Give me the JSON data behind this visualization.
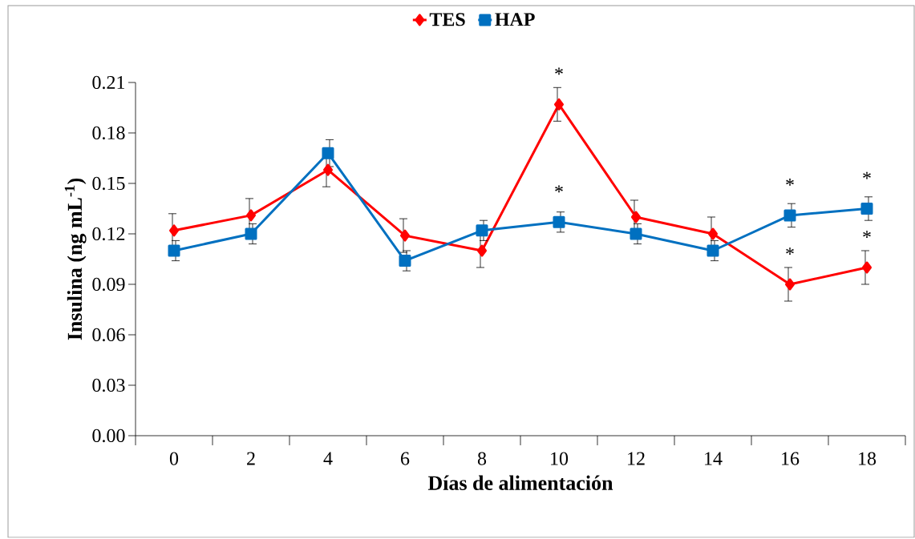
{
  "chart_data": {
    "type": "line",
    "xlabel": "Días de alimentación",
    "ylabel": "Insulina (ng mL$^{-1}$)",
    "categories": [
      "0",
      "2",
      "4",
      "6",
      "8",
      "10",
      "12",
      "14",
      "16",
      "18"
    ],
    "series": [
      {
        "name": "TES",
        "color": "#ff0000",
        "marker": "diamond",
        "values": [
          0.122,
          0.131,
          0.158,
          0.119,
          0.11,
          0.197,
          0.13,
          0.12,
          0.09,
          0.1
        ],
        "errors": [
          0.01,
          0.01,
          0.01,
          0.01,
          0.01,
          0.01,
          0.01,
          0.01,
          0.01,
          0.01
        ]
      },
      {
        "name": "HAP",
        "color": "#0070c0",
        "marker": "square",
        "values": [
          0.11,
          0.12,
          0.168,
          0.104,
          0.122,
          0.127,
          0.12,
          0.11,
          0.131,
          0.135
        ],
        "errors": [
          0.006,
          0.006,
          0.008,
          0.006,
          0.006,
          0.006,
          0.006,
          0.006,
          0.007,
          0.007
        ]
      }
    ],
    "ylim": [
      0,
      0.21
    ],
    "yticks": [
      {
        "value": 0,
        "label": "0.00"
      },
      {
        "value": 0.03,
        "label": "0.03"
      },
      {
        "value": 0.06,
        "label": "0.06"
      },
      {
        "value": 0.09,
        "label": "0.09"
      },
      {
        "value": 0.12,
        "label": "0.12"
      },
      {
        "value": 0.15,
        "label": "0.15"
      },
      {
        "value": 0.18,
        "label": "0.18"
      },
      {
        "value": 0.21,
        "label": "0.21"
      }
    ],
    "annotations": [
      {
        "text": "*",
        "x": "10",
        "y": 0.197
      },
      {
        "text": "*",
        "x": "10",
        "y": 0.127
      },
      {
        "text": "*",
        "x": "16",
        "y": 0.131
      },
      {
        "text": "*",
        "x": "16",
        "y": 0.09
      },
      {
        "text": "*",
        "x": "18",
        "y": 0.135
      },
      {
        "text": "*",
        "x": "18",
        "y": 0.1
      }
    ],
    "legend": "top",
    "grid": false,
    "line_style": "solid"
  }
}
